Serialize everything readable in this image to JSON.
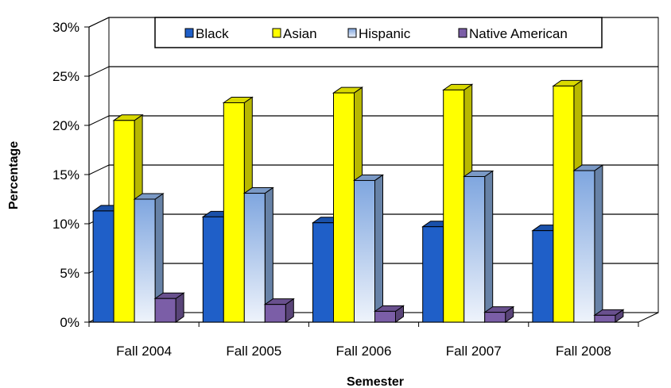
{
  "chart_data": {
    "type": "bar",
    "title": "",
    "xlabel": "Semester",
    "ylabel": "Percentage",
    "categories": [
      "Fall 2004",
      "Fall 2005",
      "Fall 2006",
      "Fall 2007",
      "Fall 2008"
    ],
    "y_ticks": [
      "0%",
      "5%",
      "10%",
      "15%",
      "20%",
      "25%",
      "30%"
    ],
    "ylim": [
      0,
      30
    ],
    "grid": true,
    "three_d": true,
    "legend_position": "top",
    "series": [
      {
        "name": "Black",
        "values": [
          11.3,
          10.7,
          10.1,
          9.7,
          9.3
        ],
        "color": "#1f5fc8"
      },
      {
        "name": "Asian",
        "values": [
          20.5,
          22.3,
          23.3,
          23.6,
          24.0
        ],
        "color": "#ffff00"
      },
      {
        "name": "Hispanic",
        "values": [
          12.5,
          13.1,
          14.4,
          14.8,
          15.4
        ],
        "color": "#8fb4e8"
      },
      {
        "name": "Native American",
        "values": [
          2.4,
          1.8,
          1.1,
          1.0,
          0.7
        ],
        "color": "#7b5ea7"
      }
    ]
  }
}
